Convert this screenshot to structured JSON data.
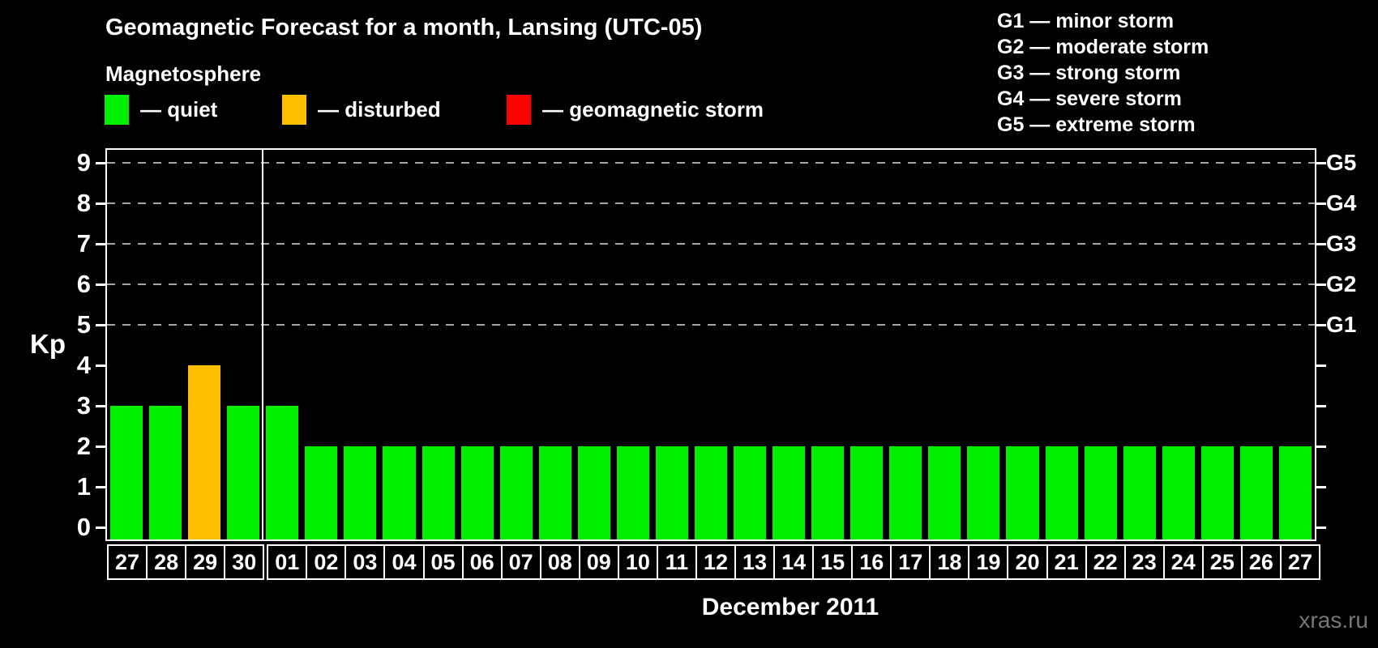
{
  "header": {
    "title": "Geomagnetic Forecast for a month, Lansing (UTC-05)",
    "subtitle": "Magnetosphere"
  },
  "legend": {
    "items": [
      {
        "label": "— quiet",
        "color": "#00F000"
      },
      {
        "label": "— disturbed",
        "color": "#FFBE00"
      },
      {
        "label": "— geomagnetic storm",
        "color": "#FF0000"
      }
    ]
  },
  "g_scale_legend": {
    "items": [
      "G1 — minor storm",
      "G2 — moderate storm",
      "G3 — strong storm",
      "G4 — severe storm",
      "G5 — extreme storm"
    ]
  },
  "chart_data": {
    "type": "bar",
    "ylabel": "Kp",
    "xlabel": "December 2011",
    "ylim": [
      0,
      9
    ],
    "yticks": [
      0,
      1,
      2,
      3,
      4,
      5,
      6,
      7,
      8,
      9
    ],
    "gridlines": [
      5,
      6,
      7,
      8,
      9
    ],
    "grid_style": "dashed",
    "right_axis": [
      {
        "label": "G1",
        "kp": 5
      },
      {
        "label": "G2",
        "kp": 6
      },
      {
        "label": "G3",
        "kp": 7
      },
      {
        "label": "G4",
        "kp": 8
      },
      {
        "label": "G5",
        "kp": 9
      }
    ],
    "categories": [
      "27",
      "28",
      "29",
      "30",
      "01",
      "02",
      "03",
      "04",
      "05",
      "06",
      "07",
      "08",
      "09",
      "10",
      "11",
      "12",
      "13",
      "14",
      "15",
      "16",
      "17",
      "18",
      "19",
      "20",
      "21",
      "22",
      "23",
      "24",
      "25",
      "26",
      "27"
    ],
    "values": [
      3,
      3,
      4,
      3,
      3,
      2,
      2,
      2,
      2,
      2,
      2,
      2,
      2,
      2,
      2,
      2,
      2,
      2,
      2,
      2,
      2,
      2,
      2,
      2,
      2,
      2,
      2,
      2,
      2,
      2,
      2
    ],
    "states": [
      "quiet",
      "quiet",
      "disturbed",
      "quiet",
      "quiet",
      "quiet",
      "quiet",
      "quiet",
      "quiet",
      "quiet",
      "quiet",
      "quiet",
      "quiet",
      "quiet",
      "quiet",
      "quiet",
      "quiet",
      "quiet",
      "quiet",
      "quiet",
      "quiet",
      "quiet",
      "quiet",
      "quiet",
      "quiet",
      "quiet",
      "quiet",
      "quiet",
      "quiet",
      "quiet",
      "quiet"
    ],
    "month_separator_after_index": 3,
    "colors": {
      "quiet": "#00F000",
      "disturbed": "#FFBE00",
      "storm": "#FF0000"
    }
  },
  "watermark": "xras.ru"
}
